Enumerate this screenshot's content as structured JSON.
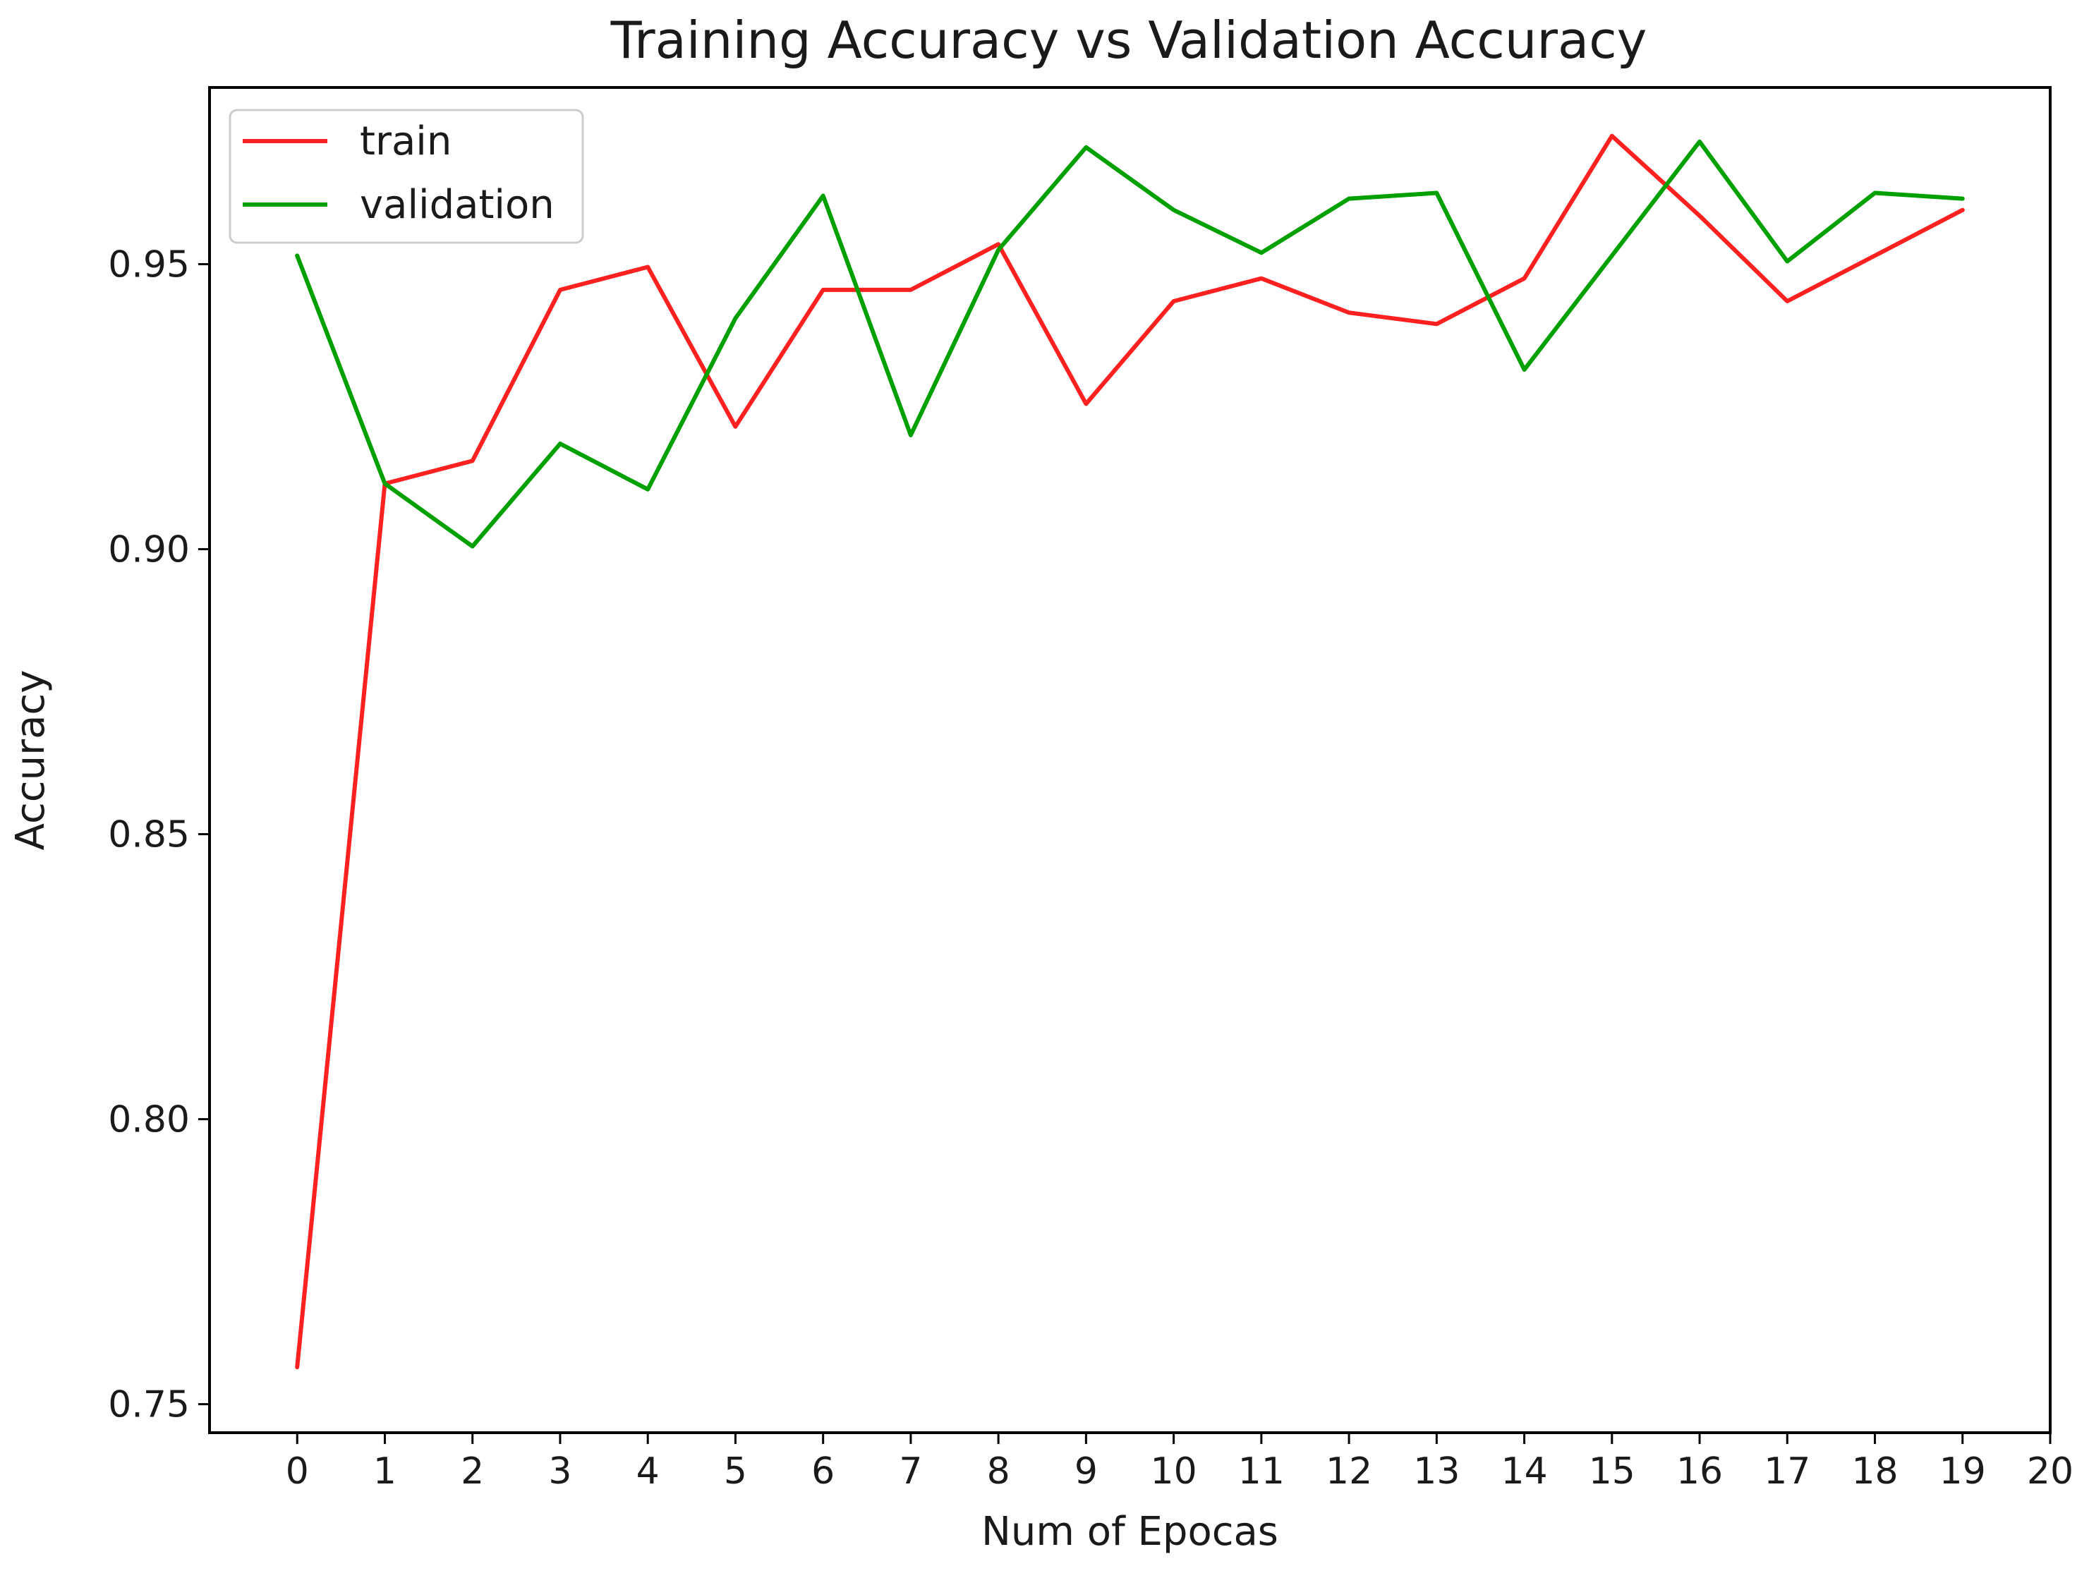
{
  "chart_data": {
    "type": "line",
    "title": "Training Accuracy vs Validation Accuracy",
    "xlabel": "Num of Epocas",
    "ylabel": "Accuracy",
    "xlim": [
      -1,
      20
    ],
    "ylim": [
      0.745,
      0.981
    ],
    "x_ticks": [
      0,
      1,
      2,
      3,
      4,
      5,
      6,
      7,
      8,
      9,
      10,
      11,
      12,
      13,
      14,
      15,
      16,
      17,
      18,
      19,
      20
    ],
    "y_ticks": [
      0.75,
      0.8,
      0.85,
      0.9,
      0.95
    ],
    "y_tick_labels": [
      "0.75",
      "0.80",
      "0.85",
      "0.90",
      "0.95"
    ],
    "grid": false,
    "legend_position": "top-left",
    "x": [
      0,
      1,
      2,
      3,
      4,
      5,
      6,
      7,
      8,
      9,
      10,
      11,
      12,
      13,
      14,
      15,
      16,
      17,
      18,
      19
    ],
    "series": [
      {
        "name": "train",
        "color": "#ff2020",
        "values": [
          0.7565,
          0.9115,
          0.9155,
          0.9455,
          0.9495,
          0.9215,
          0.9455,
          0.9455,
          0.9535,
          0.9255,
          0.9435,
          0.9475,
          0.9415,
          0.9395,
          0.9475,
          0.9725,
          0.9585,
          0.9435,
          0.9515,
          0.9595
        ]
      },
      {
        "name": "validation",
        "color": "#00a000",
        "values": [
          0.9515,
          0.9115,
          0.9005,
          0.9185,
          0.9105,
          0.9405,
          0.962,
          0.92,
          0.9525,
          0.9705,
          0.9595,
          0.952,
          0.9615,
          0.9625,
          0.9315,
          0.9515,
          0.9715,
          0.9505,
          0.9625,
          0.9615
        ]
      }
    ]
  }
}
